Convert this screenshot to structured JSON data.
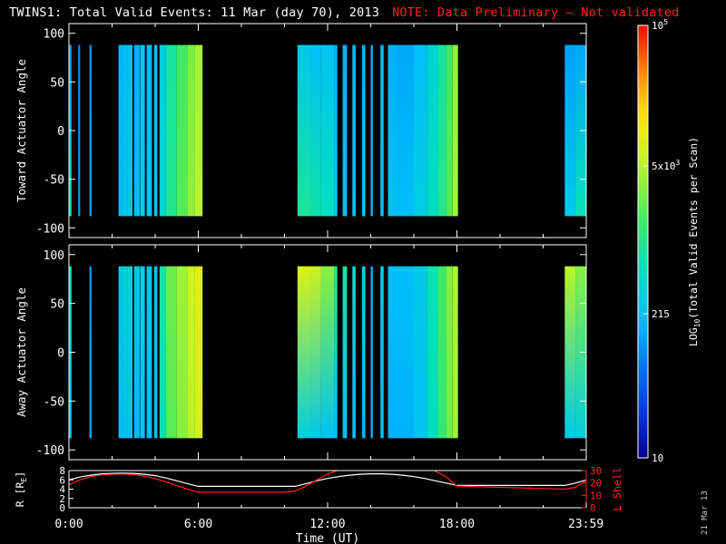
{
  "title": {
    "main": "TWINS1: Total Valid Events: 11 Mar (day  70), 2013",
    "note": "NOTE: Data Preliminary — Not validated"
  },
  "datestamp": "21 Mar 13",
  "colors": {
    "background": "#000000",
    "axes": "#ffffff",
    "note": "#ff2020",
    "r_line": "#ffffff",
    "lshell_line": "#ff2020"
  },
  "colorbar": {
    "label_prefix": "LOG",
    "label_sub": "10",
    "label_suffix": "(Total Valid  Events per Scan)",
    "scale": "log",
    "range": [
      10,
      100000
    ],
    "ticks": [
      {
        "value": 10,
        "base": "10",
        "exp": ""
      },
      {
        "value": 215,
        "base": "215",
        "exp": ""
      },
      {
        "value": 5000,
        "base": "5x10",
        "exp": "3"
      },
      {
        "value": 100000,
        "base": "10",
        "exp": "5"
      }
    ],
    "colormap": "rainbow (navy → blue → cyan → green → yellow → orange → red)"
  },
  "chart_data": [
    {
      "type": "heatmap",
      "title": "",
      "xlabel": "",
      "ylabel": "Toward Actuator Angle",
      "xlim": [
        0,
        24
      ],
      "ylim": [
        -110,
        110
      ],
      "yticks": [
        100,
        50,
        0,
        -50,
        -100
      ],
      "y_coverage": [
        -88,
        88
      ],
      "columns": [
        {
          "t0": 0.0,
          "t1": 0.12,
          "top": 2.05,
          "bottom": 2.75
        },
        {
          "t0": 0.43,
          "t1": 0.52,
          "top": 2.0,
          "bottom": 2.1
        },
        {
          "t0": 0.95,
          "t1": 1.05,
          "top": 2.0,
          "bottom": 2.1
        },
        {
          "t0": 2.3,
          "t1": 2.5,
          "top": 2.25,
          "bottom": 2.3
        },
        {
          "t0": 2.5,
          "t1": 2.7,
          "top": 2.3,
          "bottom": 2.4
        },
        {
          "t0": 2.7,
          "t1": 2.95,
          "top": 2.3,
          "bottom": 2.4
        },
        {
          "t0": 3.02,
          "t1": 3.28,
          "top": 2.2,
          "bottom": 2.3
        },
        {
          "t0": 3.3,
          "t1": 3.52,
          "top": 2.35,
          "bottom": 2.45
        },
        {
          "t0": 3.6,
          "t1": 3.85,
          "top": 2.25,
          "bottom": 2.35
        },
        {
          "t0": 3.95,
          "t1": 4.1,
          "top": 2.25,
          "bottom": 2.35
        },
        {
          "t0": 4.2,
          "t1": 4.5,
          "top": 2.5,
          "bottom": 2.6
        },
        {
          "t0": 4.5,
          "t1": 5.0,
          "top": 2.9,
          "bottom": 3.0
        },
        {
          "t0": 5.0,
          "t1": 5.5,
          "top": 3.2,
          "bottom": 3.3
        },
        {
          "t0": 5.5,
          "t1": 5.85,
          "top": 3.45,
          "bottom": 3.55
        },
        {
          "t0": 5.85,
          "t1": 6.2,
          "top": 3.6,
          "bottom": 3.7
        },
        {
          "t0": 10.6,
          "t1": 11.2,
          "top": 2.4,
          "bottom": 2.95
        },
        {
          "t0": 11.2,
          "t1": 11.7,
          "top": 2.3,
          "bottom": 2.85
        },
        {
          "t0": 11.7,
          "t1": 12.3,
          "top": 2.35,
          "bottom": 2.75
        },
        {
          "t0": 12.3,
          "t1": 12.45,
          "top": 2.2,
          "bottom": 2.4
        },
        {
          "t0": 12.7,
          "t1": 12.9,
          "top": 2.2,
          "bottom": 2.3
        },
        {
          "t0": 13.15,
          "t1": 13.3,
          "top": 2.25,
          "bottom": 2.35
        },
        {
          "t0": 13.6,
          "t1": 13.75,
          "top": 2.2,
          "bottom": 2.3
        },
        {
          "t0": 14.0,
          "t1": 14.1,
          "top": 2.2,
          "bottom": 2.25
        },
        {
          "t0": 14.45,
          "t1": 14.6,
          "top": 2.25,
          "bottom": 2.3
        },
        {
          "t0": 14.8,
          "t1": 15.2,
          "top": 2.2,
          "bottom": 2.35
        },
        {
          "t0": 15.2,
          "t1": 16.0,
          "top": 2.15,
          "bottom": 2.3
        },
        {
          "t0": 16.0,
          "t1": 16.6,
          "top": 2.3,
          "bottom": 2.5
        },
        {
          "t0": 16.6,
          "t1": 17.1,
          "top": 2.55,
          "bottom": 2.7
        },
        {
          "t0": 17.1,
          "t1": 17.5,
          "top": 2.9,
          "bottom": 3.0
        },
        {
          "t0": 17.5,
          "t1": 17.8,
          "top": 3.2,
          "bottom": 3.3
        },
        {
          "t0": 17.8,
          "t1": 18.05,
          "top": 3.55,
          "bottom": 3.6
        },
        {
          "t0": 23.0,
          "t1": 23.5,
          "top": 2.1,
          "bottom": 2.45
        },
        {
          "t0": 23.5,
          "t1": 24.0,
          "top": 2.15,
          "bottom": 2.8
        }
      ],
      "value_units": "log10(Total Valid Events per Scan)"
    },
    {
      "type": "heatmap",
      "title": "",
      "xlabel": "",
      "ylabel": "Away Actuator Angle",
      "xlim": [
        0,
        24
      ],
      "ylim": [
        -110,
        110
      ],
      "yticks": [
        100,
        50,
        0,
        -50,
        -100
      ],
      "y_coverage": [
        -88,
        88
      ],
      "columns": [
        {
          "t0": 0.0,
          "t1": 0.12,
          "top": 2.7,
          "bottom": 2.3
        },
        {
          "t0": 0.95,
          "t1": 1.05,
          "top": 2.0,
          "bottom": 2.1
        },
        {
          "t0": 2.3,
          "t1": 2.5,
          "top": 2.45,
          "bottom": 2.3
        },
        {
          "t0": 2.5,
          "t1": 2.7,
          "top": 2.6,
          "bottom": 2.35
        },
        {
          "t0": 2.7,
          "t1": 2.95,
          "top": 2.55,
          "bottom": 2.35
        },
        {
          "t0": 3.02,
          "t1": 3.28,
          "top": 2.4,
          "bottom": 2.25
        },
        {
          "t0": 3.3,
          "t1": 3.52,
          "top": 2.5,
          "bottom": 2.35
        },
        {
          "t0": 3.6,
          "t1": 3.85,
          "top": 2.4,
          "bottom": 2.3
        },
        {
          "t0": 3.95,
          "t1": 4.1,
          "top": 2.35,
          "bottom": 2.3
        },
        {
          "t0": 4.2,
          "t1": 4.5,
          "top": 2.9,
          "bottom": 2.8
        },
        {
          "t0": 4.5,
          "t1": 5.0,
          "top": 3.4,
          "bottom": 3.3
        },
        {
          "t0": 5.0,
          "t1": 5.5,
          "top": 3.6,
          "bottom": 3.5
        },
        {
          "t0": 5.5,
          "t1": 5.85,
          "top": 3.8,
          "bottom": 3.7
        },
        {
          "t0": 5.85,
          "t1": 6.2,
          "top": 3.95,
          "bottom": 3.85
        },
        {
          "t0": 10.6,
          "t1": 11.2,
          "top": 3.9,
          "bottom": 2.5
        },
        {
          "t0": 11.2,
          "t1": 11.7,
          "top": 3.8,
          "bottom": 2.4
        },
        {
          "t0": 11.7,
          "t1": 12.3,
          "top": 3.5,
          "bottom": 2.35
        },
        {
          "t0": 12.3,
          "t1": 12.45,
          "top": 3.0,
          "bottom": 2.3
        },
        {
          "t0": 12.7,
          "t1": 12.9,
          "top": 2.9,
          "bottom": 2.3
        },
        {
          "t0": 13.15,
          "t1": 13.3,
          "top": 2.7,
          "bottom": 2.25
        },
        {
          "t0": 13.6,
          "t1": 13.75,
          "top": 2.5,
          "bottom": 2.2
        },
        {
          "t0": 14.0,
          "t1": 14.1,
          "top": 2.2,
          "bottom": 2.2
        },
        {
          "t0": 14.45,
          "t1": 14.6,
          "top": 2.4,
          "bottom": 2.25
        },
        {
          "t0": 14.8,
          "t1": 15.2,
          "top": 2.3,
          "bottom": 2.2
        },
        {
          "t0": 15.2,
          "t1": 16.0,
          "top": 2.3,
          "bottom": 2.2
        },
        {
          "t0": 16.0,
          "t1": 16.6,
          "top": 2.45,
          "bottom": 2.35
        },
        {
          "t0": 16.6,
          "t1": 17.1,
          "top": 2.8,
          "bottom": 2.7
        },
        {
          "t0": 17.1,
          "t1": 17.5,
          "top": 3.2,
          "bottom": 3.1
        },
        {
          "t0": 17.5,
          "t1": 17.8,
          "top": 3.5,
          "bottom": 3.4
        },
        {
          "t0": 17.8,
          "t1": 18.05,
          "top": 3.65,
          "bottom": 3.6
        },
        {
          "t0": 23.0,
          "t1": 23.5,
          "top": 3.7,
          "bottom": 2.4
        },
        {
          "t0": 23.5,
          "t1": 24.0,
          "top": 3.5,
          "bottom": 2.5
        }
      ],
      "value_units": "log10(Total Valid Events per Scan)"
    },
    {
      "type": "line",
      "title": "",
      "xlabel": "Time (UT)",
      "ylabel": "R [R",
      "ylabel_sub": "E",
      "ylabel_suffix": "]",
      "ylabel_right": "L Shell",
      "xlim": [
        0,
        24
      ],
      "xticks": [
        0,
        6,
        12,
        18,
        23.983
      ],
      "xtick_labels": [
        "0:00",
        "6:00",
        "12:00",
        "18:00",
        "23:59"
      ],
      "ylim": [
        0,
        8
      ],
      "yticks": [
        0,
        2,
        4,
        6,
        8
      ],
      "ylim_right": [
        0,
        30
      ],
      "yticks_right": [
        0,
        10,
        20,
        30
      ],
      "series": [
        {
          "color": "#ffffff",
          "axis": "left",
          "x": [
            0,
            0.5,
            1,
            1.5,
            2,
            2.5,
            3,
            3.5,
            4,
            4.5,
            5,
            5.5,
            6,
            7,
            8,
            9,
            10,
            10.5,
            11,
            11.5,
            12,
            12.5,
            13,
            13.5,
            14,
            14.5,
            15,
            15.5,
            16,
            16.5,
            17,
            17.5,
            18,
            19,
            20,
            21,
            22,
            23,
            23.5,
            24
          ],
          "y": [
            6.0,
            6.6,
            7.0,
            7.3,
            7.4,
            7.45,
            7.4,
            7.2,
            6.9,
            6.4,
            5.8,
            5.2,
            4.6,
            4.6,
            4.6,
            4.6,
            4.6,
            4.6,
            5.2,
            5.8,
            6.3,
            6.7,
            7.0,
            7.2,
            7.3,
            7.3,
            7.2,
            7.0,
            6.7,
            6.3,
            5.8,
            5.3,
            4.8,
            4.8,
            4.8,
            4.8,
            4.8,
            4.8,
            5.3,
            6.0
          ]
        },
        {
          "color": "#ff2020",
          "axis": "right",
          "x": [
            0,
            0.5,
            1,
            1.5,
            2,
            2.5,
            3,
            3.5,
            4,
            4.5,
            5,
            5.5,
            6,
            7,
            8,
            9,
            10,
            10.5,
            11,
            11.5,
            12,
            12.5,
            12.8,
            16.8,
            17,
            17.5,
            18,
            19,
            20,
            21,
            22,
            23,
            23.5,
            24
          ],
          "y": [
            18.5,
            22.5,
            25.0,
            26.5,
            27.0,
            27.2,
            26.8,
            25.5,
            23.5,
            20.8,
            17.8,
            15.0,
            12.5,
            12.5,
            12.5,
            12.5,
            12.5,
            13.5,
            17.5,
            22.5,
            27.0,
            30.5,
            32.0,
            32.0,
            29.5,
            25.0,
            17.5,
            17.0,
            16.5,
            16.0,
            15.5,
            15.0,
            16.5,
            22.0
          ]
        }
      ]
    }
  ]
}
